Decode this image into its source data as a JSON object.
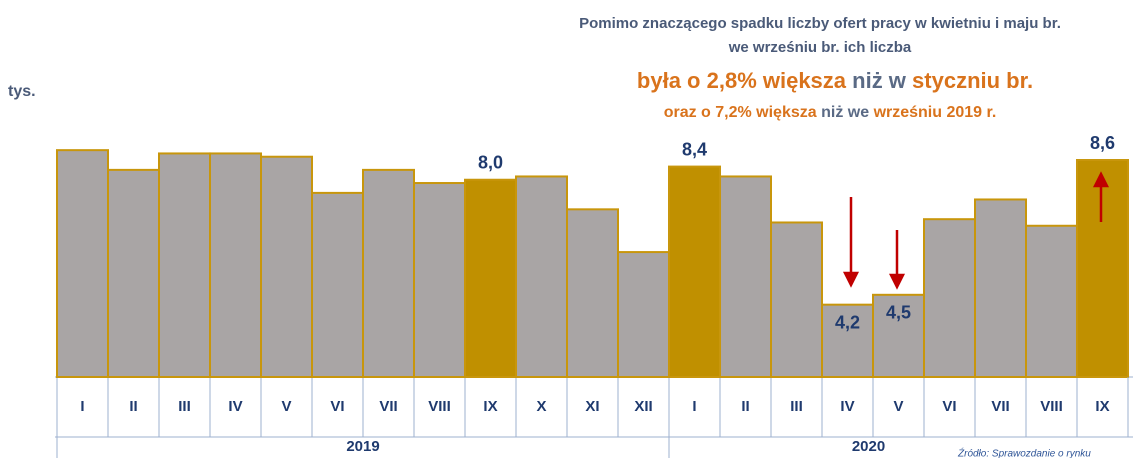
{
  "chart_data": {
    "type": "bar",
    "title_lines": [
      "Pomimo znaczącego spadku liczby ofert pracy w kwietniu i maju br.",
      "we wrześniu br. ich liczba"
    ],
    "headline": [
      "była o 2,8% większa",
      " niż w ",
      "styczniu br."
    ],
    "subheadline": [
      "oraz o 7,2% większa",
      " niż we ",
      "wrześniu 2019 r."
    ],
    "unit": "tys.",
    "source": "Źródło: Sprawozdanie o rynku",
    "category_groups": [
      {
        "label": "2019",
        "categories": [
          "I",
          "II",
          "III",
          "IV",
          "V",
          "VI",
          "VII",
          "VIII",
          "IX",
          "X",
          "XI",
          "XII"
        ]
      },
      {
        "label": "2020",
        "categories": [
          "I",
          "II",
          "III",
          "IV",
          "V",
          "VI",
          "VII",
          "VIII",
          "IX"
        ]
      }
    ],
    "values": [
      8.9,
      8.3,
      8.8,
      8.8,
      8.7,
      7.6,
      8.3,
      7.9,
      8.0,
      8.1,
      7.1,
      5.8,
      8.4,
      8.1,
      6.7,
      4.2,
      4.5,
      6.8,
      7.4,
      6.6,
      8.6
    ],
    "value_labels": [
      null,
      null,
      null,
      null,
      null,
      null,
      null,
      null,
      "8,0",
      null,
      null,
      null,
      "8,4",
      null,
      null,
      "4,2",
      "4,5",
      null,
      null,
      null,
      "8,6"
    ],
    "colors": [
      "#a9a5a5",
      "#a9a5a5",
      "#a9a5a5",
      "#a9a5a5",
      "#a9a5a5",
      "#a9a5a5",
      "#a9a5a5",
      "#a9a5a5",
      "#c09000",
      "#a9a5a5",
      "#a9a5a5",
      "#a9a5a5",
      "#c09000",
      "#a9a5a5",
      "#a9a5a5",
      "#a9a5a5",
      "#a9a5a5",
      "#a9a5a5",
      "#a9a5a5",
      "#a9a5a5",
      "#c09000"
    ],
    "edge_color": "#c8960c",
    "ylim": [
      2,
      9.3
    ]
  }
}
